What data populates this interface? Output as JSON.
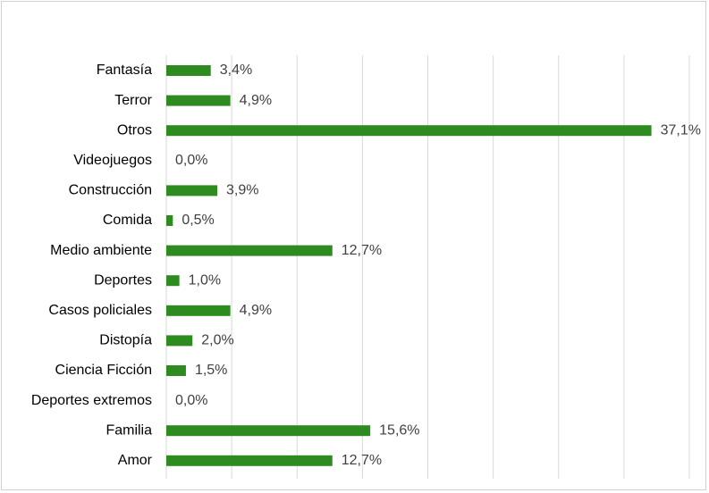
{
  "chart_data": {
    "type": "bar",
    "orientation": "horizontal",
    "categories": [
      "Fantasía",
      "Terror",
      "Otros",
      "Videojuegos",
      "Construcción",
      "Comida",
      "Medio ambiente",
      "Deportes",
      "Casos policiales",
      "Distopía",
      "Ciencia Ficción",
      "Deportes extremos",
      "Familia",
      "Amor"
    ],
    "values": [
      3.4,
      4.9,
      37.1,
      0.0,
      3.9,
      0.5,
      12.7,
      1.0,
      4.9,
      2.0,
      1.5,
      0.0,
      15.6,
      12.7
    ],
    "value_labels": [
      "3,4%",
      "4,9%",
      "37,1%",
      "0,0%",
      "3,9%",
      "0,5%",
      "12,7%",
      "1,0%",
      "4,9%",
      "2,0%",
      "1,5%",
      "0,0%",
      "15,6%",
      "12,7%"
    ],
    "xlim": [
      0,
      40
    ],
    "grid": true,
    "bar_color": "#2e8b1f",
    "gridline_color": "#d9d9d9",
    "legend": "none"
  }
}
